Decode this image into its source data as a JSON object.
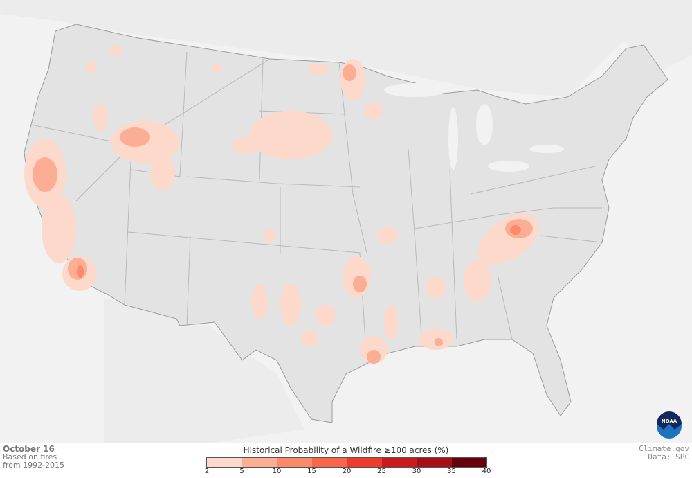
{
  "footer": {
    "date": "October 16",
    "note_line1": "Based on fires",
    "note_line2": "from 1992-2015"
  },
  "credits": {
    "site": "Climate.gov",
    "data": "Data: SPC"
  },
  "logo": {
    "text": "NOAA"
  },
  "legend": {
    "title": "Historical Probability of a Wildfire ≥100 acres (%)",
    "ticks": [
      "2",
      "5",
      "10",
      "15",
      "20",
      "25",
      "30",
      "35",
      "40"
    ],
    "colors": [
      "#fdd9cb",
      "#fbae93",
      "#fb8a6a",
      "#f96549",
      "#ef3b2c",
      "#cb1a1d",
      "#a50f15",
      "#67000d"
    ]
  },
  "map_colors": {
    "land": "#e3e3e3",
    "water": "#f2f2f2",
    "borders": "#b9b9b9"
  }
}
